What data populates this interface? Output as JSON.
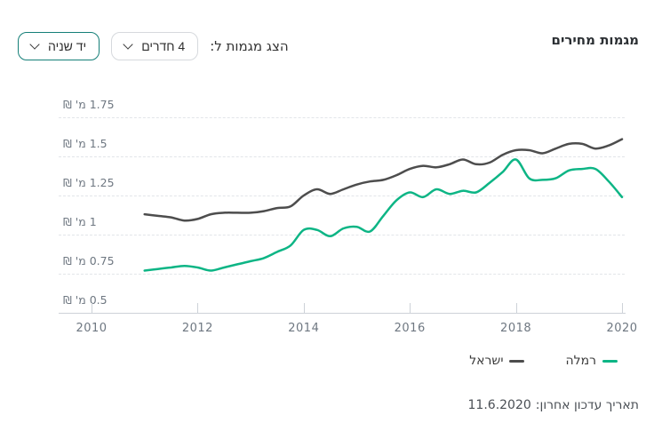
{
  "header": {
    "title": "מגמות מחירים"
  },
  "controls": {
    "label": "הצג מגמות ל:",
    "rooms_dropdown": {
      "value": "4 חדרים"
    },
    "condition_dropdown": {
      "value": "יד שניה"
    },
    "chevron_icon": "chevron-down",
    "active_border_color": "#157f78",
    "neutral_border_color": "#d6d9dd"
  },
  "footer": {
    "last_update_label": "תאריך עדכון אחרון:",
    "last_update_date": "11.6.2020"
  },
  "chart_data": {
    "type": "line",
    "title": "מגמות מחירים",
    "x": [
      2011,
      2011.25,
      2011.5,
      2011.75,
      2012,
      2012.25,
      2012.5,
      2012.75,
      2013,
      2013.25,
      2013.5,
      2013.75,
      2014,
      2014.25,
      2014.5,
      2014.75,
      2015,
      2015.25,
      2015.5,
      2015.75,
      2016,
      2016.25,
      2016.5,
      2016.75,
      2017,
      2017.25,
      2017.5,
      2017.75,
      2018,
      2018.25,
      2018.5,
      2018.75,
      2019,
      2019.25,
      2019.5,
      2019.75,
      2020
    ],
    "series": [
      {
        "id": "ramla",
        "name": "רמלה",
        "color": "#0db585",
        "values": [
          0.77,
          0.78,
          0.79,
          0.8,
          0.79,
          0.77,
          0.79,
          0.81,
          0.83,
          0.85,
          0.89,
          0.93,
          1.03,
          1.03,
          0.99,
          1.04,
          1.05,
          1.02,
          1.12,
          1.22,
          1.27,
          1.24,
          1.29,
          1.26,
          1.28,
          1.27,
          1.33,
          1.4,
          1.48,
          1.36,
          1.35,
          1.36,
          1.41,
          1.42,
          1.42,
          1.34,
          1.24
        ]
      },
      {
        "id": "israel",
        "name": "ישראל",
        "color": "#4d4d4d",
        "values": [
          1.13,
          1.12,
          1.11,
          1.09,
          1.1,
          1.13,
          1.14,
          1.14,
          1.14,
          1.15,
          1.17,
          1.18,
          1.25,
          1.29,
          1.26,
          1.29,
          1.32,
          1.34,
          1.35,
          1.38,
          1.42,
          1.44,
          1.43,
          1.45,
          1.48,
          1.45,
          1.46,
          1.51,
          1.54,
          1.54,
          1.52,
          1.55,
          1.58,
          1.58,
          1.55,
          1.57,
          1.61
        ]
      }
    ],
    "unit": "מ' ₪",
    "yticks": [
      {
        "value": 0.5,
        "label": "0.5 מ' ₪"
      },
      {
        "value": 0.75,
        "label": "0.75 מ' ₪"
      },
      {
        "value": 1,
        "label": "1 מ' ₪"
      },
      {
        "value": 1.25,
        "label": "1.25 מ' ₪"
      },
      {
        "value": 1.5,
        "label": "1.5 מ' ₪"
      },
      {
        "value": 1.75,
        "label": "1.75 מ' ₪"
      }
    ],
    "xticks": [
      2010,
      2012,
      2014,
      2016,
      2018,
      2020
    ],
    "xtick_labels": [
      "2010",
      "2012",
      "2014",
      "2016",
      "2018",
      "2020"
    ],
    "ylim": [
      0.5,
      1.78
    ],
    "xlim": [
      2010,
      2020.05
    ],
    "grid": "horizontal-dashed",
    "legend_position": "bottom-right",
    "line_width": 2.5
  }
}
